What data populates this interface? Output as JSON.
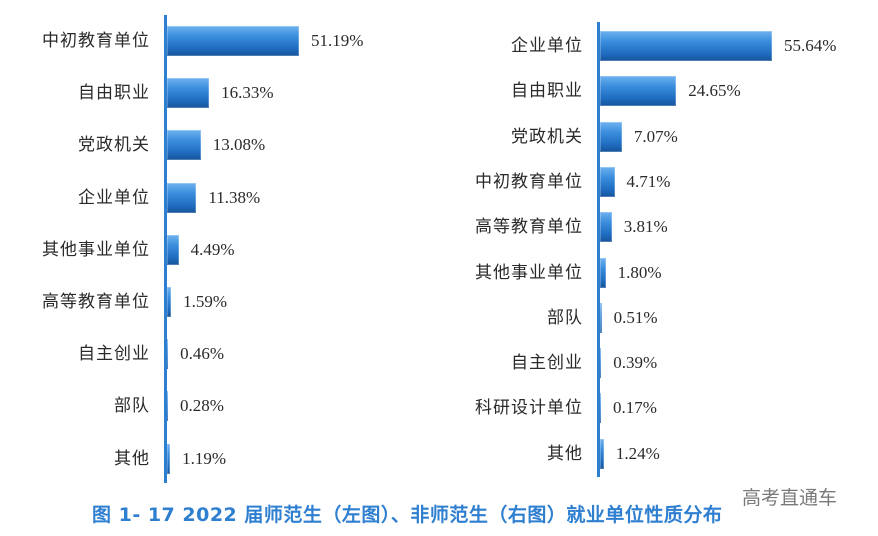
{
  "caption": "图 1- 17  2022 届师范生（左图）、非师范生（右图）就业单位性质分布",
  "watermark": "高考直通车",
  "colors": {
    "bar_top": "#6fb2f0",
    "bar_bottom": "#16539a",
    "axis": "#2f7fd0",
    "caption": "#2f7fd0"
  },
  "chart_data": [
    {
      "type": "bar",
      "orientation": "horizontal",
      "title": "2022届师范生就业单位性质分布",
      "xlabel": "",
      "ylabel": "",
      "categories": [
        "中初教育单位",
        "自由职业",
        "党政机关",
        "企业单位",
        "其他事业单位",
        "高等教育单位",
        "自主创业",
        "部队",
        "其他"
      ],
      "values": [
        51.19,
        16.33,
        13.08,
        11.38,
        4.49,
        1.59,
        0.46,
        0.28,
        1.19
      ],
      "labels": [
        "51.19%",
        "16.33%",
        "13.08%",
        "11.38%",
        "4.49%",
        "1.59%",
        "0.46%",
        "0.28%",
        "1.19%"
      ],
      "unit": "%",
      "grid": false,
      "legend": null
    },
    {
      "type": "bar",
      "orientation": "horizontal",
      "title": "2022届非师范生就业单位性质分布",
      "xlabel": "",
      "ylabel": "",
      "categories": [
        "企业单位",
        "自由职业",
        "党政机关",
        "中初教育单位",
        "高等教育单位",
        "其他事业单位",
        "部队",
        "自主创业",
        "科研设计单位",
        "其他"
      ],
      "values": [
        55.64,
        24.65,
        7.07,
        4.71,
        3.81,
        1.8,
        0.51,
        0.39,
        0.17,
        1.24
      ],
      "labels": [
        "55.64%",
        "24.65%",
        "7.07%",
        "4.71%",
        "3.81%",
        "1.80%",
        "0.51%",
        "0.39%",
        "0.17%",
        "1.24%"
      ],
      "unit": "%",
      "grid": false,
      "legend": null
    }
  ]
}
